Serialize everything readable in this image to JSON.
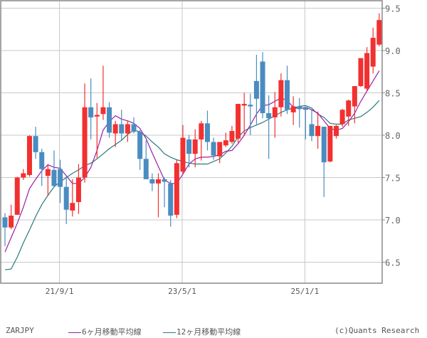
{
  "chart_data": {
    "type": "candlestick",
    "title": "ZARJPY",
    "symbol": "ZARJPY",
    "xlabel": "",
    "ylabel": "",
    "ylim": [
      6.27,
      9.6
    ],
    "y_ticks": [
      9.5,
      9.0,
      8.5,
      8.0,
      7.5,
      7.0,
      6.5
    ],
    "y_tick_labels": [
      "9.5",
      "9.0",
      "8.5",
      "8.0",
      "7.5",
      "7.0",
      "6.5"
    ],
    "x_tick_labels": [
      {
        "label": "21/9/1",
        "index": 9
      },
      {
        "label": "23/5/1",
        "index": 29
      },
      {
        "label": "25/1/1",
        "index": 49
      }
    ],
    "grid": true,
    "legend_position": "bottom",
    "up_color": "#f23030",
    "down_color": "#4a8cc0",
    "candles": [
      {
        "o": 7.03,
        "h": 7.08,
        "l": 6.69,
        "c": 6.91
      },
      {
        "o": 6.91,
        "h": 7.18,
        "l": 6.89,
        "c": 7.05
      },
      {
        "o": 7.06,
        "h": 7.51,
        "l": 7.06,
        "c": 7.5
      },
      {
        "o": 7.5,
        "h": 7.6,
        "l": 7.47,
        "c": 7.55
      },
      {
        "o": 7.53,
        "h": 8.0,
        "l": 7.51,
        "c": 7.99
      },
      {
        "o": 7.99,
        "h": 8.1,
        "l": 7.72,
        "c": 7.8
      },
      {
        "o": 7.8,
        "h": 7.84,
        "l": 7.4,
        "c": 7.6
      },
      {
        "o": 7.52,
        "h": 7.66,
        "l": 7.28,
        "c": 7.6
      },
      {
        "o": 7.59,
        "h": 7.82,
        "l": 7.45,
        "c": 7.4
      },
      {
        "o": 7.6,
        "h": 7.71,
        "l": 7.2,
        "c": 7.39
      },
      {
        "o": 7.39,
        "h": 7.53,
        "l": 6.95,
        "c": 7.12
      },
      {
        "o": 7.11,
        "h": 7.48,
        "l": 7.04,
        "c": 7.2
      },
      {
        "o": 7.21,
        "h": 7.66,
        "l": 7.07,
        "c": 7.5
      },
      {
        "o": 7.5,
        "h": 8.61,
        "l": 7.44,
        "c": 8.33
      },
      {
        "o": 8.33,
        "h": 8.67,
        "l": 7.95,
        "c": 8.21
      },
      {
        "o": 8.22,
        "h": 8.38,
        "l": 7.73,
        "c": 8.24
      },
      {
        "o": 8.25,
        "h": 8.82,
        "l": 8.18,
        "c": 8.33
      },
      {
        "o": 8.33,
        "h": 8.39,
        "l": 7.97,
        "c": 8.03
      },
      {
        "o": 8.02,
        "h": 8.17,
        "l": 7.86,
        "c": 8.13
      },
      {
        "o": 8.13,
        "h": 8.3,
        "l": 7.94,
        "c": 8.02
      },
      {
        "o": 8.02,
        "h": 8.17,
        "l": 7.92,
        "c": 8.13
      },
      {
        "o": 8.13,
        "h": 8.21,
        "l": 8.02,
        "c": 8.04
      },
      {
        "o": 8.04,
        "h": 8.06,
        "l": 7.59,
        "c": 7.72
      },
      {
        "o": 7.72,
        "h": 7.94,
        "l": 7.49,
        "c": 7.48
      },
      {
        "o": 7.48,
        "h": 7.55,
        "l": 7.34,
        "c": 7.43
      },
      {
        "o": 7.43,
        "h": 7.55,
        "l": 7.03,
        "c": 7.48
      },
      {
        "o": 7.48,
        "h": 7.5,
        "l": 7.15,
        "c": 7.45
      },
      {
        "o": 7.43,
        "h": 7.47,
        "l": 6.92,
        "c": 7.05
      },
      {
        "o": 7.06,
        "h": 7.71,
        "l": 7.02,
        "c": 7.67
      },
      {
        "o": 7.57,
        "h": 8.12,
        "l": 7.54,
        "c": 7.97
      },
      {
        "o": 7.95,
        "h": 8.0,
        "l": 7.62,
        "c": 7.78
      },
      {
        "o": 7.78,
        "h": 8.07,
        "l": 7.62,
        "c": 7.95
      },
      {
        "o": 7.95,
        "h": 8.17,
        "l": 7.7,
        "c": 8.14
      },
      {
        "o": 8.14,
        "h": 8.29,
        "l": 7.82,
        "c": 7.92
      },
      {
        "o": 7.92,
        "h": 7.97,
        "l": 7.71,
        "c": 7.76
      },
      {
        "o": 7.75,
        "h": 7.92,
        "l": 7.67,
        "c": 7.92
      },
      {
        "o": 7.88,
        "h": 8.03,
        "l": 7.86,
        "c": 7.94
      },
      {
        "o": 7.92,
        "h": 8.11,
        "l": 7.9,
        "c": 8.05
      },
      {
        "o": 7.96,
        "h": 8.33,
        "l": 7.91,
        "c": 8.37
      },
      {
        "o": 8.35,
        "h": 8.5,
        "l": 8.0,
        "c": 8.37
      },
      {
        "o": 8.36,
        "h": 8.49,
        "l": 8.0,
        "c": 8.34
      },
      {
        "o": 8.64,
        "h": 8.95,
        "l": 8.13,
        "c": 8.43
      },
      {
        "o": 8.87,
        "h": 8.98,
        "l": 8.2,
        "c": 8.26
      },
      {
        "o": 8.26,
        "h": 8.47,
        "l": 7.72,
        "c": 8.2
      },
      {
        "o": 8.21,
        "h": 8.51,
        "l": 7.97,
        "c": 8.33
      },
      {
        "o": 8.33,
        "h": 8.73,
        "l": 8.22,
        "c": 8.65
      },
      {
        "o": 8.65,
        "h": 8.82,
        "l": 8.25,
        "c": 8.3
      },
      {
        "o": 8.27,
        "h": 8.46,
        "l": 8.12,
        "c": 8.34
      },
      {
        "o": 8.34,
        "h": 8.44,
        "l": 8.09,
        "c": 8.31
      },
      {
        "o": 8.33,
        "h": 8.33,
        "l": 7.95,
        "c": 8.3
      },
      {
        "o": 8.13,
        "h": 8.3,
        "l": 7.93,
        "c": 7.99
      },
      {
        "o": 7.99,
        "h": 8.28,
        "l": 7.84,
        "c": 8.11
      },
      {
        "o": 8.1,
        "h": 8.08,
        "l": 7.27,
        "c": 7.68
      },
      {
        "o": 7.69,
        "h": 7.98,
        "l": 7.68,
        "c": 8.11
      },
      {
        "o": 7.99,
        "h": 8.12,
        "l": 7.96,
        "c": 8.11
      },
      {
        "o": 8.13,
        "h": 8.31,
        "l": 8.1,
        "c": 8.3
      },
      {
        "o": 8.22,
        "h": 8.42,
        "l": 8.11,
        "c": 8.41
      },
      {
        "o": 8.34,
        "h": 8.53,
        "l": 8.14,
        "c": 8.58
      },
      {
        "o": 8.58,
        "h": 8.7,
        "l": 8.57,
        "c": 8.91
      },
      {
        "o": 8.55,
        "h": 9.04,
        "l": 8.52,
        "c": 8.97
      },
      {
        "o": 8.81,
        "h": 9.27,
        "l": 8.73,
        "c": 9.15
      },
      {
        "o": 9.07,
        "h": 9.44,
        "l": 9.05,
        "c": 9.36
      }
    ],
    "series": [
      {
        "name": "6ヶ月移動平均線",
        "color": "#9a1ea8",
        "values": [
          6.62,
          6.79,
          6.96,
          7.15,
          7.37,
          7.48,
          7.58,
          7.65,
          7.62,
          7.61,
          7.52,
          7.43,
          7.43,
          7.5,
          7.62,
          7.82,
          8.06,
          8.16,
          8.23,
          8.19,
          8.17,
          8.14,
          8.08,
          7.96,
          7.79,
          7.63,
          7.47,
          7.43,
          7.43,
          7.54,
          7.66,
          7.72,
          7.74,
          7.74,
          7.75,
          7.77,
          7.81,
          7.82,
          7.9,
          8.0,
          8.12,
          8.25,
          8.35,
          8.36,
          8.4,
          8.44,
          8.41,
          8.33,
          8.31,
          8.33,
          8.3,
          8.26,
          8.17,
          8.08,
          8.06,
          8.08,
          8.16,
          8.26,
          8.4,
          8.52,
          8.64,
          8.76
        ]
      },
      {
        "name": "12ヶ月移動平均線",
        "color": "#2a7a78",
        "values": [
          6.41,
          6.42,
          6.56,
          6.73,
          6.88,
          7.04,
          7.18,
          7.29,
          7.39,
          7.45,
          7.5,
          7.55,
          7.59,
          7.64,
          7.67,
          7.72,
          7.78,
          7.84,
          7.89,
          7.94,
          8.01,
          8.06,
          8.04,
          7.99,
          7.92,
          7.86,
          7.78,
          7.74,
          7.71,
          7.69,
          7.67,
          7.66,
          7.66,
          7.66,
          7.69,
          7.72,
          7.79,
          7.87,
          7.98,
          8.05,
          8.09,
          8.12,
          8.15,
          8.19,
          8.23,
          8.27,
          8.3,
          8.32,
          8.34,
          8.35,
          8.32,
          8.25,
          8.21,
          8.14,
          8.13,
          8.13,
          8.18,
          8.2,
          8.22,
          8.27,
          8.33,
          8.41
        ]
      }
    ]
  },
  "footer": {
    "symbol": "ZARJPY",
    "legend_ma6": "6ヶ月移動平均線",
    "legend_ma12": "12ヶ月移動平均線",
    "copyright": "(c)Quants Research"
  }
}
